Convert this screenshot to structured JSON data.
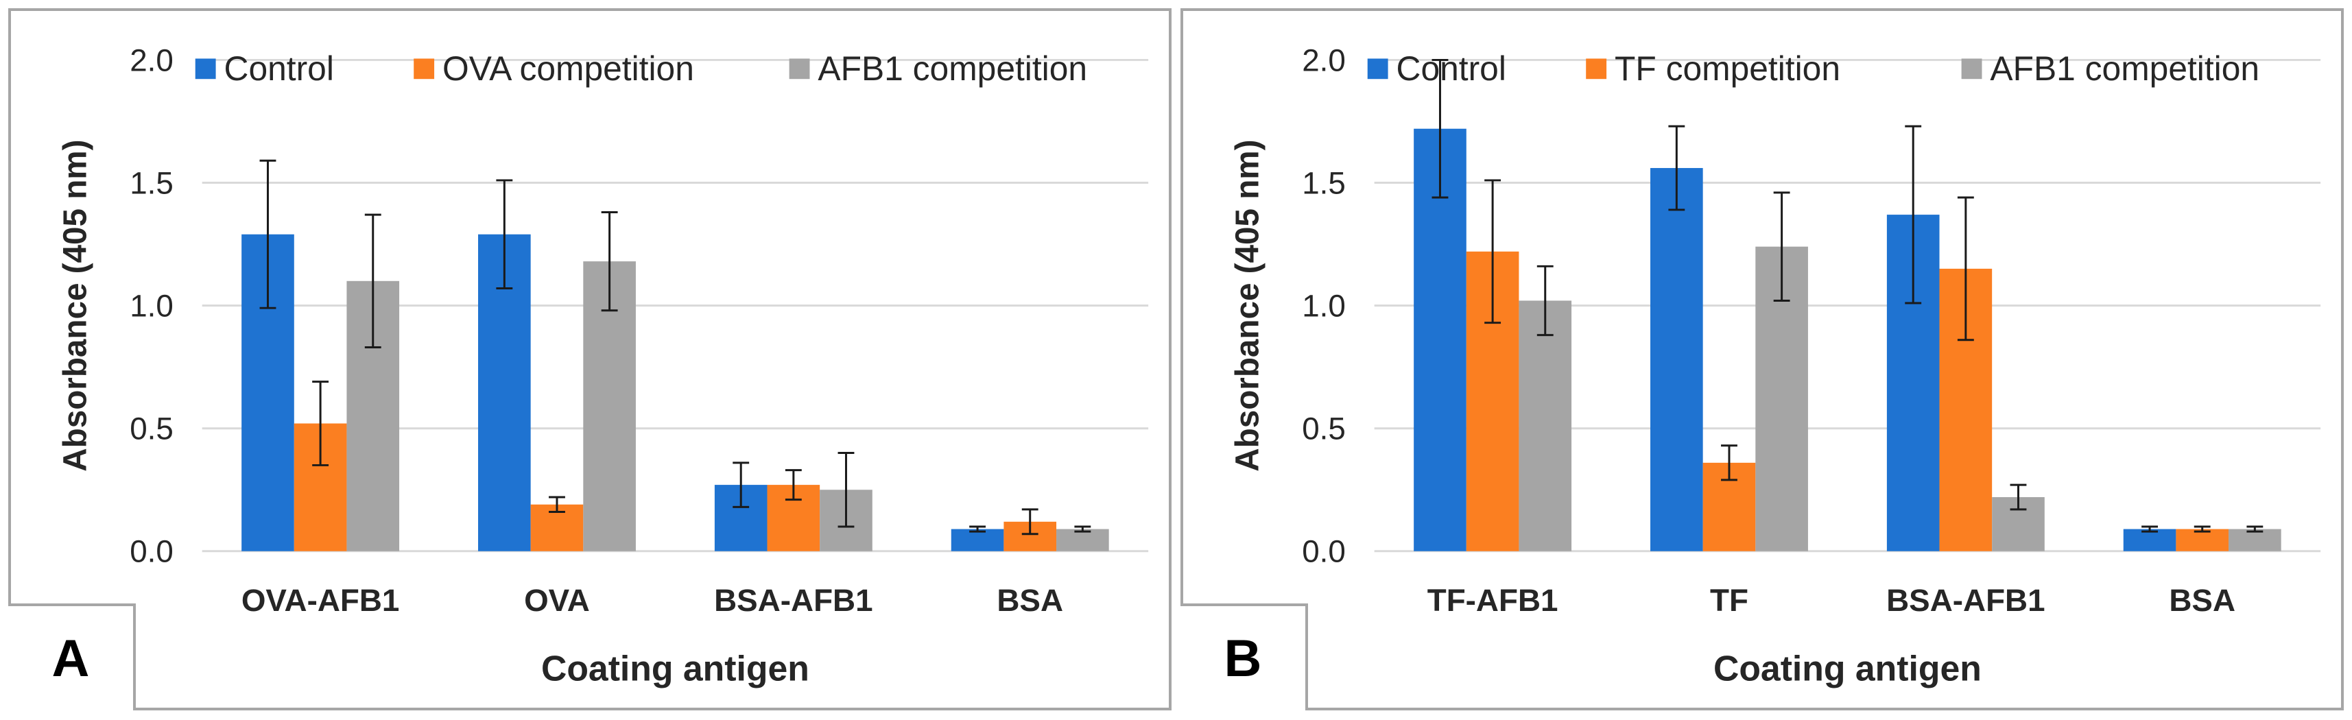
{
  "colors": {
    "control": "#1f73d1",
    "competition": "#fb7f21",
    "afb1": "#a5a5a5",
    "gridline": "#d9d9d9",
    "errorbar": "#1a1a1a"
  },
  "chart_data": [
    {
      "panel_label": "A",
      "type": "bar",
      "xlabel": "Coating antigen",
      "ylabel": "Absorbance (405 nm)",
      "ylim": [
        0,
        2.0
      ],
      "yticks": [
        "0.0",
        "0.5",
        "1.0",
        "1.5",
        "2.0"
      ],
      "legend_position": "top",
      "categories": [
        "OVA-AFB1",
        "OVA",
        "BSA-AFB1",
        "BSA"
      ],
      "series": [
        {
          "name": "Control",
          "color_key": "control",
          "values": [
            1.29,
            1.29,
            0.27,
            0.09
          ],
          "errors": [
            0.3,
            0.22,
            0.09,
            0.01
          ]
        },
        {
          "name": "OVA competition",
          "color_key": "competition",
          "values": [
            0.52,
            0.19,
            0.27,
            0.12
          ],
          "errors": [
            0.17,
            0.03,
            0.06,
            0.05
          ]
        },
        {
          "name": "AFB1 competition",
          "color_key": "afb1",
          "values": [
            1.1,
            1.18,
            0.25,
            0.09
          ],
          "errors": [
            0.27,
            0.2,
            0.15,
            0.01
          ]
        }
      ]
    },
    {
      "panel_label": "B",
      "type": "bar",
      "xlabel": "Coating antigen",
      "ylabel": "Absorbance (405 nm)",
      "ylim": [
        0,
        2.0
      ],
      "yticks": [
        "0.0",
        "0.5",
        "1.0",
        "1.5",
        "2.0"
      ],
      "legend_position": "top",
      "categories": [
        "TF-AFB1",
        "TF",
        "BSA-AFB1",
        "BSA"
      ],
      "series": [
        {
          "name": "Control",
          "color_key": "control",
          "values": [
            1.72,
            1.56,
            1.37,
            0.09
          ],
          "errors": [
            0.28,
            0.17,
            0.36,
            0.01
          ]
        },
        {
          "name": "TF competition",
          "color_key": "competition",
          "values": [
            1.22,
            0.36,
            1.15,
            0.09
          ],
          "errors": [
            0.29,
            0.07,
            0.29,
            0.01
          ]
        },
        {
          "name": "AFB1 competition",
          "color_key": "afb1",
          "values": [
            1.02,
            1.24,
            0.22,
            0.09
          ],
          "errors": [
            0.14,
            0.22,
            0.05,
            0.01
          ]
        }
      ]
    }
  ]
}
